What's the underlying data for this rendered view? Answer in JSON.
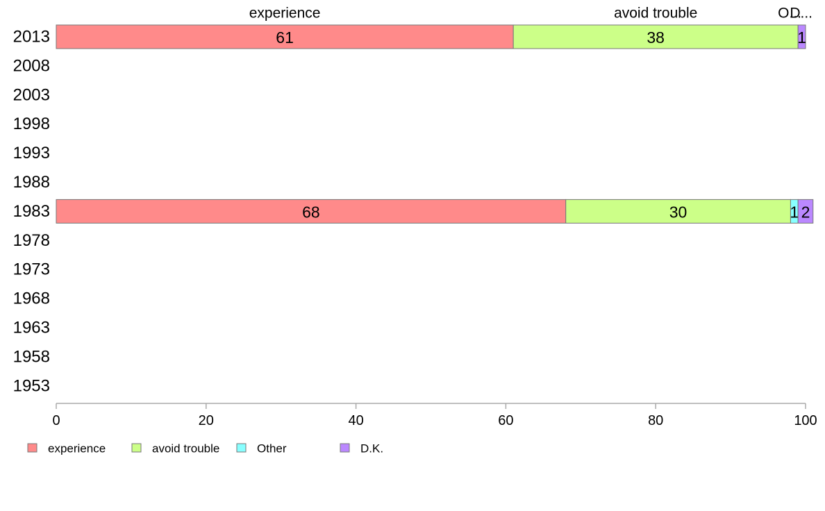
{
  "chart_data": {
    "type": "bar",
    "orientation": "horizontal",
    "stacked": true,
    "title": "",
    "xlabel": "",
    "ylabel": "",
    "xlim": [
      0,
      100
    ],
    "x_ticks": [
      0,
      20,
      40,
      60,
      80,
      100
    ],
    "grid": false,
    "legend_position": "bottom-left",
    "categories": [
      "2013",
      "2008",
      "2003",
      "1998",
      "1993",
      "1988",
      "1983",
      "1978",
      "1973",
      "1968",
      "1963",
      "1958",
      "1953"
    ],
    "series": [
      {
        "name": "experience",
        "color": "#ff8a8a",
        "values": [
          61,
          null,
          null,
          null,
          null,
          null,
          68,
          null,
          null,
          null,
          null,
          null,
          null
        ]
      },
      {
        "name": "avoid trouble",
        "color": "#ccff88",
        "values": [
          38,
          null,
          null,
          null,
          null,
          null,
          30,
          null,
          null,
          null,
          null,
          null,
          null
        ]
      },
      {
        "name": "Other",
        "color": "#88ffff",
        "values": [
          0,
          null,
          null,
          null,
          null,
          null,
          1,
          null,
          null,
          null,
          null,
          null,
          null
        ]
      },
      {
        "name": "D.K.",
        "color": "#bb88ff",
        "values": [
          1,
          null,
          null,
          null,
          null,
          null,
          2,
          null,
          null,
          null,
          null,
          null,
          null
        ]
      }
    ],
    "top_labels": [
      "experience",
      "avoid trouble",
      "O...",
      "D..."
    ]
  }
}
